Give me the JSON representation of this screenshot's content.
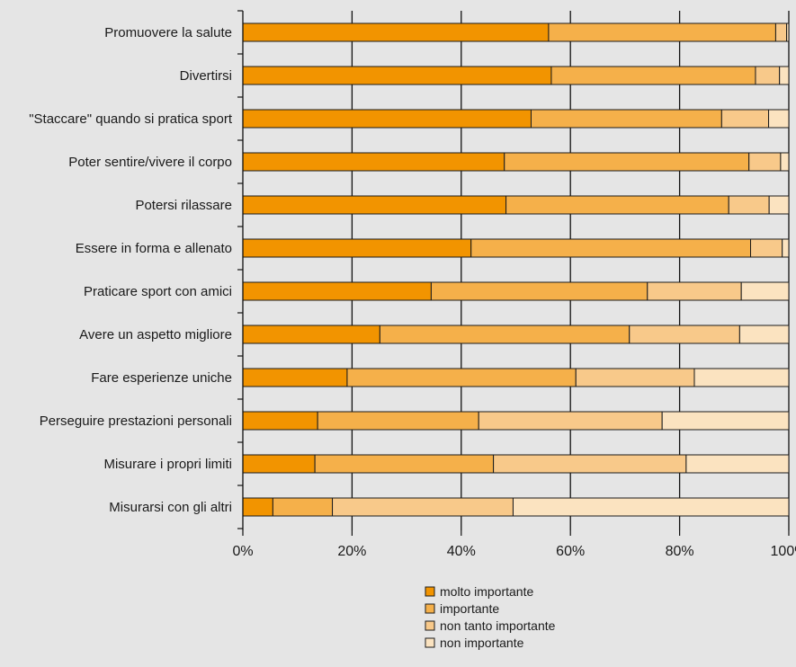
{
  "chart_data": {
    "type": "bar",
    "orientation": "horizontal",
    "stacked": true,
    "categories": [
      "Promuovere la salute",
      "Divertirsi",
      "\"Staccare\" quando si pratica sport",
      "Poter sentire/vivere il corpo",
      "Potersi rilassare",
      "Essere in forma e allenato",
      "Praticare sport con amici",
      "Avere un aspetto migliore",
      "Fare esperienze uniche",
      "Perseguire prestazioni personali",
      "Misurare i propri limiti",
      "Misurarsi con gli altri"
    ],
    "series": [
      {
        "name": "molto importante",
        "color": "#f29400",
        "values": [
          56,
          56.5,
          52.8,
          47.9,
          48.2,
          41.8,
          34.5,
          25.1,
          19.1,
          13.7,
          13.2,
          5.5
        ]
      },
      {
        "name": "importante",
        "color": "#f5b04a",
        "values": [
          41.6,
          37.4,
          34.9,
          44.8,
          40.8,
          51.2,
          39.6,
          45.7,
          41.9,
          29.5,
          32.7,
          10.9
        ]
      },
      {
        "name": "non tanto importante",
        "color": "#f8c98a",
        "values": [
          2,
          4.4,
          8.6,
          5.8,
          7.4,
          5.8,
          17.2,
          20.2,
          21.7,
          33.6,
          35.3,
          33.1
        ]
      },
      {
        "name": "non importante",
        "color": "#fbe3c0",
        "values": [
          0.4,
          1.7,
          3.7,
          1.5,
          3.6,
          1.2,
          8.7,
          9,
          17.3,
          23.2,
          18.8,
          50.5
        ]
      }
    ],
    "xlim": [
      0,
      100
    ],
    "xticks": [
      0,
      20,
      40,
      60,
      80,
      100
    ],
    "xtick_labels": [
      "0%",
      "20%",
      "40%",
      "60%",
      "80%",
      "100%"
    ],
    "grid": true,
    "legend_position": "bottom"
  }
}
